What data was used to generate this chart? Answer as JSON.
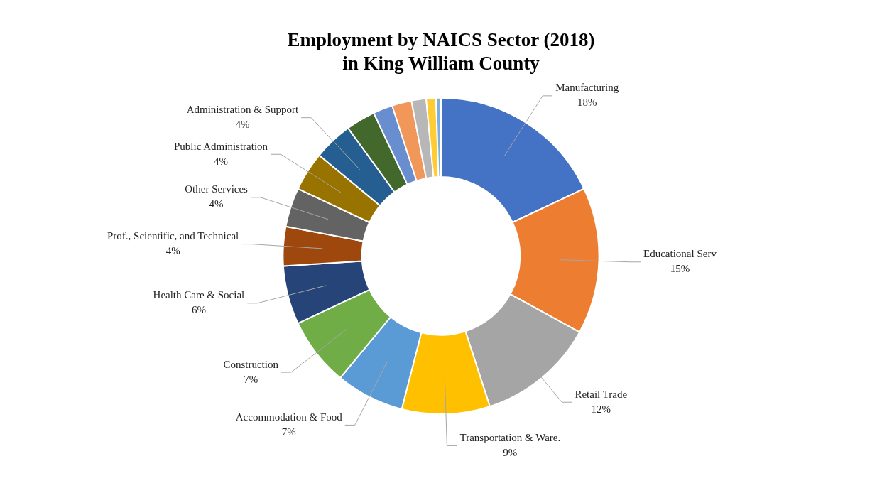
{
  "chart_data": {
    "type": "donut",
    "title": "Employment by NAICS Sector (2018)\nin King William County",
    "categories": [
      "Manufacturing",
      "Educational Serv",
      "Retail Trade",
      "Transportation & Ware.",
      "Accommodation & Food",
      "Construction",
      "Health Care & Social",
      "Prof., Scientific, and Technical",
      "Other Services",
      "Public Administration",
      "Administration & Support",
      null,
      null,
      null,
      null,
      null,
      null
    ],
    "values": [
      18,
      15,
      12,
      9,
      7,
      7,
      6,
      4,
      4,
      4,
      4,
      3,
      2,
      2,
      1.5,
      1,
      0.5
    ],
    "value_labels": [
      "18%",
      "15%",
      "12%",
      "9%",
      "7%",
      "7%",
      "6%",
      "4%",
      "4%",
      "4%",
      "4%",
      null,
      null,
      null,
      null,
      null,
      null
    ],
    "colors": [
      "#4472c4",
      "#ed7d31",
      "#a5a5a5",
      "#ffc000",
      "#5b9bd5",
      "#70ad47",
      "#264478",
      "#9e480e",
      "#636363",
      "#997300",
      "#255e91",
      "#43682b",
      "#698ed0",
      "#f1975a",
      "#b7b7b7",
      "#ffcd33",
      "#7cafdd"
    ],
    "legend": false
  }
}
